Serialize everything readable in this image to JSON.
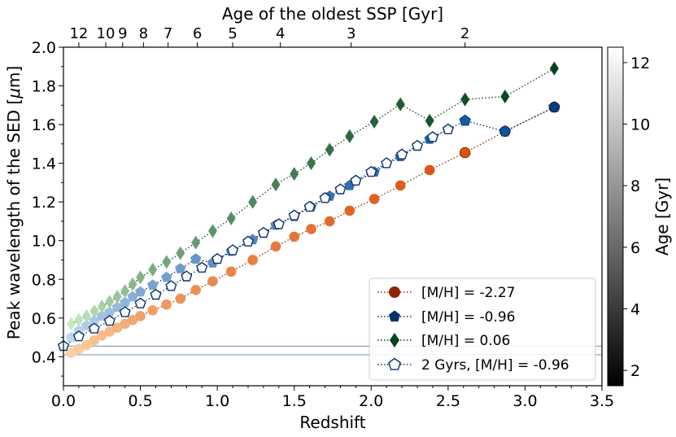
{
  "chart_data": {
    "type": "scatter",
    "xlabel": "Redshift",
    "ylabel": "Peak wavelength of the SED [$\\mu$m]",
    "ylabel_parts": [
      "Peak wavelength of the SED [",
      "μ",
      "m]"
    ],
    "top_xlabel": "Age of the oldest SSP [Gyr]",
    "xlim": [
      0.0,
      3.5
    ],
    "ylim": [
      0.25,
      2.0
    ],
    "xticks": [
      0.0,
      0.5,
      1.0,
      1.5,
      2.0,
      2.5,
      3.0,
      3.5
    ],
    "xtick_labels": [
      "0.0",
      "0.5",
      "1.0",
      "1.5",
      "2.0",
      "2.5",
      "3.0",
      "3.5"
    ],
    "yticks": [
      0.4,
      0.6,
      0.8,
      1.0,
      1.2,
      1.4,
      1.6,
      1.8,
      2.0
    ],
    "ytick_labels": [
      "0.4",
      "0.6",
      "0.8",
      "1.0",
      "1.2",
      "1.4",
      "1.6",
      "1.8",
      "2.0"
    ],
    "top_ticks": [
      {
        "label": "12",
        "z": 0.1
      },
      {
        "label": "10",
        "z": 0.275
      },
      {
        "label": "9",
        "z": 0.385
      },
      {
        "label": "8",
        "z": 0.52
      },
      {
        "label": "7",
        "z": 0.68
      },
      {
        "label": "6",
        "z": 0.87
      },
      {
        "label": "5",
        "z": 1.1
      },
      {
        "label": "4",
        "z": 1.41
      },
      {
        "label": "3",
        "z": 1.87
      },
      {
        "label": "2",
        "z": 2.61
      }
    ],
    "colorbar": {
      "label": "Age [Gyr]",
      "range": [
        1.5,
        12.5
      ],
      "ticks": [
        2,
        4,
        6,
        8,
        10,
        12
      ],
      "tick_labels": [
        "2",
        "4",
        "6",
        "8",
        "10",
        "12"
      ]
    },
    "hlines": [
      0.41,
      0.455
    ],
    "series": [
      {
        "name": "[M/H] = -2.27",
        "marker": "circle",
        "color": "#8b2500",
        "x": [
          0.05,
          0.1,
          0.15,
          0.2,
          0.25,
          0.3,
          0.35,
          0.4,
          0.45,
          0.5,
          0.58,
          0.67,
          0.76,
          0.86,
          0.97,
          1.09,
          1.23,
          1.38,
          1.5,
          1.61,
          1.73,
          1.86,
          2.02,
          2.19,
          2.38,
          2.61,
          2.87,
          3.19
        ],
        "y": [
          0.42,
          0.44,
          0.46,
          0.485,
          0.51,
          0.53,
          0.55,
          0.57,
          0.59,
          0.61,
          0.64,
          0.67,
          0.7,
          0.745,
          0.79,
          0.84,
          0.9,
          0.97,
          1.02,
          1.06,
          1.1,
          1.155,
          1.215,
          1.285,
          1.365,
          1.455,
          1.565,
          1.69
        ]
      },
      {
        "name": "[M/H] = -0.96",
        "marker": "pentagon",
        "color": "#08306b",
        "x": [
          0.0,
          0.05,
          0.1,
          0.15,
          0.2,
          0.25,
          0.3,
          0.35,
          0.4,
          0.45,
          0.5,
          0.58,
          0.67,
          0.76,
          0.86,
          0.97,
          1.09,
          1.23,
          1.38,
          1.5,
          1.61,
          1.73,
          1.86,
          2.02,
          2.19,
          2.38,
          2.61,
          2.87,
          3.19
        ],
        "y": [
          0.455,
          0.5,
          0.535,
          0.56,
          0.585,
          0.61,
          0.63,
          0.655,
          0.68,
          0.71,
          0.735,
          0.77,
          0.81,
          0.855,
          0.905,
          0.885,
          0.945,
          1.005,
          1.08,
          1.125,
          1.175,
          1.23,
          1.285,
          1.355,
          1.435,
          1.525,
          1.62,
          1.565,
          1.69
        ]
      },
      {
        "name": "[M/H] = 0.06",
        "marker": "diamond",
        "color": "#00441b",
        "x": [
          0.05,
          0.1,
          0.15,
          0.2,
          0.25,
          0.3,
          0.35,
          0.4,
          0.45,
          0.5,
          0.58,
          0.67,
          0.76,
          0.86,
          0.97,
          1.09,
          1.23,
          1.38,
          1.5,
          1.61,
          1.73,
          1.86,
          2.02,
          2.19,
          2.38,
          2.61,
          2.87,
          3.19
        ],
        "y": [
          0.57,
          0.59,
          0.61,
          0.635,
          0.66,
          0.685,
          0.71,
          0.74,
          0.775,
          0.81,
          0.85,
          0.89,
          0.935,
          0.99,
          1.05,
          1.115,
          1.2,
          1.29,
          1.345,
          1.4,
          1.47,
          1.54,
          1.615,
          1.705,
          1.62,
          1.73,
          1.745,
          1.89
        ]
      },
      {
        "name": "2 Gyrs, [M/H] = -0.96",
        "marker": "pentagon-open",
        "color": "#08306b",
        "x": [
          0.0,
          0.1,
          0.2,
          0.3,
          0.4,
          0.5,
          0.6,
          0.7,
          0.8,
          0.9,
          1.0,
          1.1,
          1.2,
          1.3,
          1.4,
          1.5,
          1.6,
          1.7,
          1.8,
          1.9,
          2.0,
          2.1,
          2.2,
          2.3,
          2.4,
          2.5
        ],
        "y": [
          0.455,
          0.505,
          0.545,
          0.585,
          0.63,
          0.675,
          0.72,
          0.765,
          0.815,
          0.86,
          0.905,
          0.95,
          0.995,
          1.04,
          1.085,
          1.13,
          1.175,
          1.22,
          1.265,
          1.31,
          1.355,
          1.4,
          1.445,
          1.49,
          1.535,
          1.575
        ]
      }
    ],
    "legend": {
      "position": "lower right",
      "entries": [
        "[M/H] = -2.27",
        "[M/H] = -0.96",
        "[M/H] = 0.06",
        "2 Gyrs, [M/H] = -0.96"
      ]
    },
    "colors": {
      "orange_light": "#fdd0a2",
      "orange_dark": "#d94801",
      "blue_light": "#c6dbef",
      "blue_dark": "#08519c",
      "green_light": "#c7e9c0",
      "green_dark": "#00441b",
      "hline": "#5a7fa8"
    }
  }
}
